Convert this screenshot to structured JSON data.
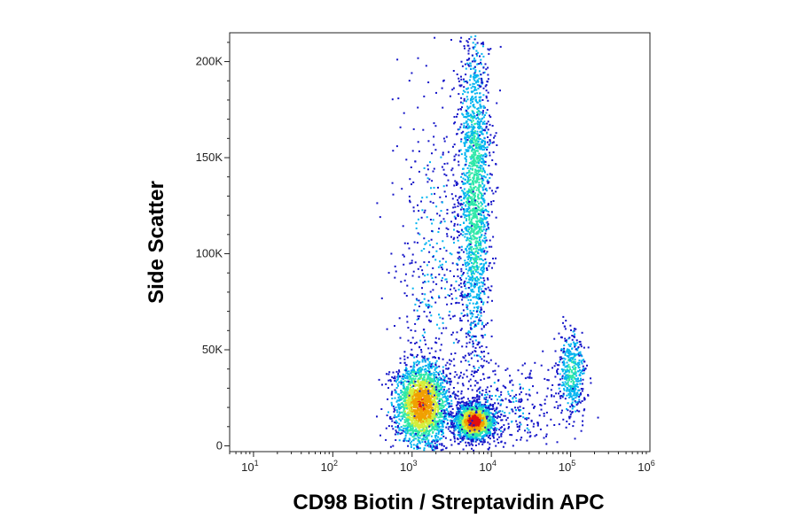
{
  "chart_data": {
    "type": "scatter",
    "title": "",
    "xlabel": "CD98 Biotin / Streptavidin APC",
    "ylabel": "Side Scatter",
    "xscale": "log",
    "xlim": [
      5,
      1000000
    ],
    "ylim": [
      -3000,
      215000
    ],
    "grid": false,
    "legend": "none",
    "colormap": [
      "#1515c8",
      "#00b4f0",
      "#2ee8a8",
      "#d4ee3c",
      "#f0a000",
      "#e01010"
    ],
    "x_ticks": [
      {
        "base": "10",
        "exp": "1",
        "value": 10
      },
      {
        "base": "10",
        "exp": "2",
        "value": 100
      },
      {
        "base": "10",
        "exp": "3",
        "value": 1000
      },
      {
        "base": "10",
        "exp": "4",
        "value": 10000
      },
      {
        "base": "10",
        "exp": "5",
        "value": 100000
      },
      {
        "base": "10",
        "exp": "6",
        "value": 1000000
      }
    ],
    "y_ticks": [
      {
        "label": "0",
        "value": 0
      },
      {
        "label": "50K",
        "value": 50000
      },
      {
        "label": "100K",
        "value": 100000
      },
      {
        "label": "150K",
        "value": 150000
      },
      {
        "label": "200K",
        "value": 200000
      }
    ],
    "populations": [
      {
        "x_center": 1300,
        "y_center": 22000,
        "x_spread_log": 0.17,
        "y_sd": 11000,
        "count": 2300,
        "peak": 0.8
      },
      {
        "x_center": 6000,
        "y_center": 13000,
        "x_spread_log": 0.12,
        "y_sd": 4500,
        "count": 1900,
        "peak": 1.0
      },
      {
        "x_center": 6000,
        "y_center": 130000,
        "x_spread_log": 0.1,
        "y_sd": 45000,
        "count": 1800,
        "peak": 0.35
      },
      {
        "x_center": 100000,
        "y_center": 38000,
        "x_spread_log": 0.09,
        "y_sd": 11000,
        "count": 450,
        "peak": 0.3
      },
      {
        "x_center": 2000,
        "y_center": 90000,
        "x_spread_log": 0.28,
        "y_sd": 50000,
        "count": 500,
        "peak": 0.1
      },
      {
        "x_center": 15000,
        "y_center": 20000,
        "x_spread_log": 0.35,
        "y_sd": 12000,
        "count": 350,
        "peak": 0.1
      }
    ]
  }
}
